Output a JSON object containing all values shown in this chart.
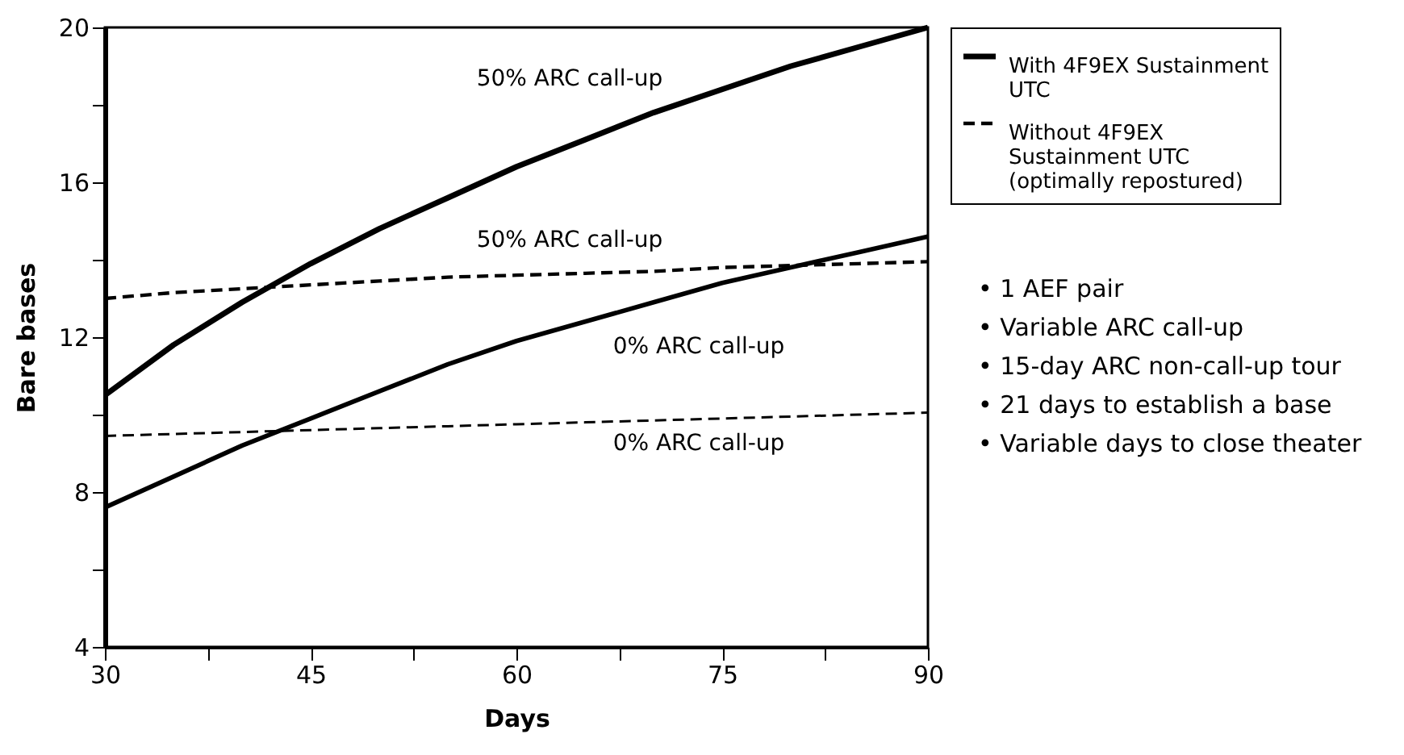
{
  "chart_data": {
    "type": "line",
    "xlabel": "Days",
    "ylabel": "Bare bases",
    "x": [
      30,
      35,
      40,
      45,
      50,
      55,
      60,
      65,
      70,
      75,
      80,
      85,
      90
    ],
    "series": [
      {
        "name": "With 4F9EX Sustainment UTC",
        "color": "#000000",
        "line_style": "solid",
        "values": [
          10.5,
          11.8,
          12.9,
          13.9,
          14.8,
          15.6,
          16.4,
          17.1,
          17.8,
          18.4,
          19.0,
          19.5,
          20.0
        ]
      },
      {
        "color": "#000000",
        "line_style": "solid",
        "values": [
          7.6,
          8.4,
          9.2,
          9.9,
          10.6,
          11.3,
          11.9,
          12.4,
          12.9,
          13.4,
          13.8,
          14.2,
          14.6
        ]
      },
      {
        "name": "Without 4F9EX Sustainment UTC (optimally repostured)",
        "color": "#000000",
        "line_style": "dashed",
        "values": [
          13.0,
          13.15,
          13.25,
          13.35,
          13.45,
          13.55,
          13.6,
          13.65,
          13.7,
          13.8,
          13.85,
          13.9,
          13.95
        ]
      },
      {
        "color": "#000000",
        "line_style": "dashed",
        "values": [
          9.45,
          9.5,
          9.55,
          9.6,
          9.65,
          9.7,
          9.75,
          9.8,
          9.85,
          9.9,
          9.95,
          10.0,
          10.05
        ]
      }
    ],
    "xlim": [
      30,
      90
    ],
    "xticks": [
      30,
      {
        "value": 37.5,
        "label": null
      },
      45,
      {
        "value": 52.5,
        "label": null
      },
      60,
      {
        "value": 67.5,
        "label": null
      },
      75,
      {
        "value": 82.5,
        "label": null
      },
      90
    ],
    "ylim": [
      4,
      20
    ],
    "yticks": [
      4,
      {
        "value": 6,
        "label": null
      },
      8,
      {
        "value": 10,
        "label": null
      },
      12,
      {
        "value": 14,
        "label": null
      },
      16,
      {
        "value": 18,
        "label": null
      },
      20
    ],
    "grid": false,
    "legend": "top right",
    "marker": "none",
    "annotations": [
      "50% ARC call-up",
      "50% ARC call-up",
      "0% ARC call-up",
      "0% ARC call-up",
      "• 1 AEF pair",
      "• Variable ARC call-up",
      "• 15-day ARC non-call-up tour",
      "• 21 days to establish a base",
      "• Variable days to close theater"
    ]
  }
}
